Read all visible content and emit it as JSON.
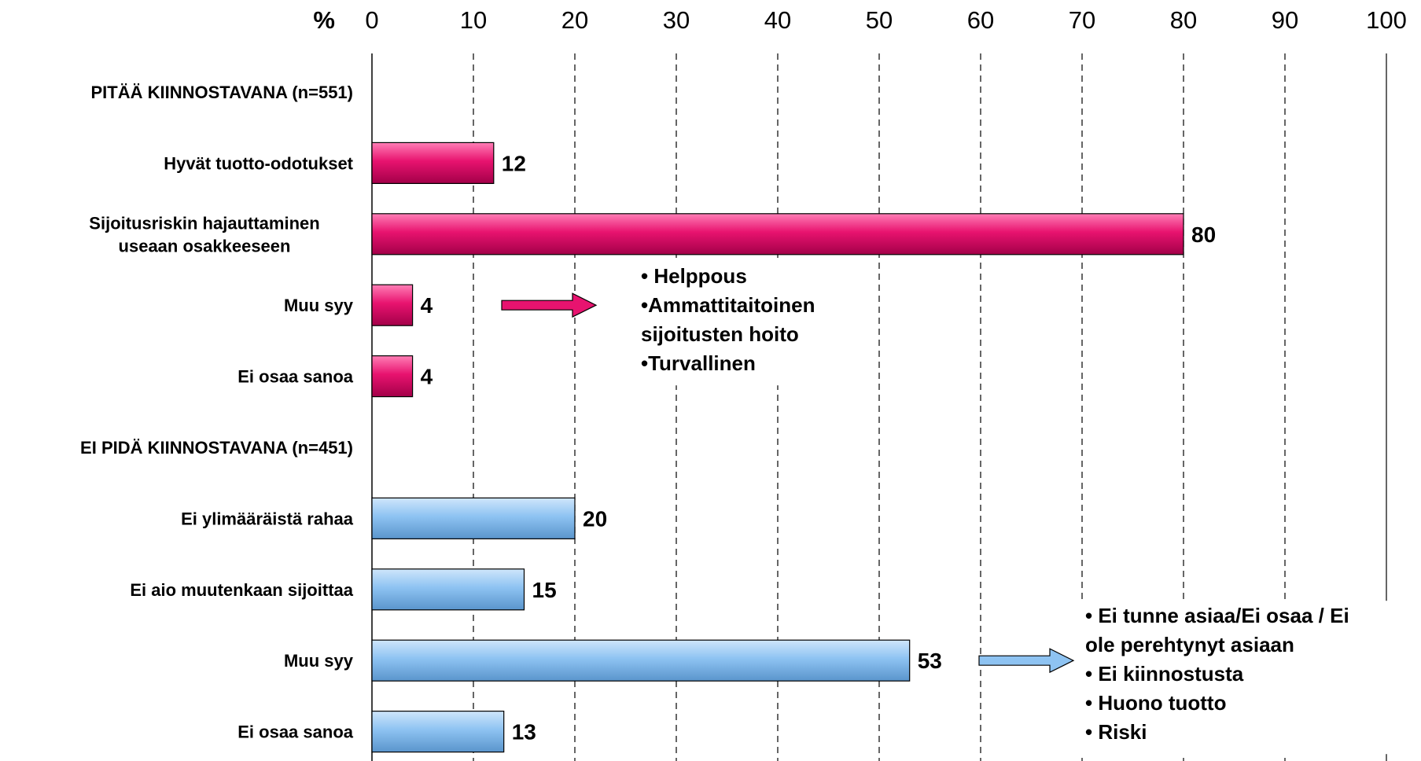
{
  "chart_data": {
    "type": "bar",
    "orientation": "horizontal",
    "unit_label": "%",
    "xlim": [
      0,
      100
    ],
    "x_ticks": [
      "0",
      "10",
      "20",
      "30",
      "40",
      "50",
      "60",
      "70",
      "80",
      "90",
      "100"
    ],
    "grid": true,
    "colors": {
      "group1": "#e8136f",
      "group2": "#8ec3f2"
    },
    "rows": [
      {
        "label": [
          "PITÄÄ KIINNOSTAVANA (n=551)"
        ],
        "header": true
      },
      {
        "label": [
          "Hyvät tuotto-odotukset"
        ],
        "value": 12,
        "value_label": "12",
        "group": "group1"
      },
      {
        "label": [
          "Sijoitusriskin hajauttaminen",
          "useaan osakkeeseen"
        ],
        "value": 80,
        "value_label": "80",
        "group": "group1"
      },
      {
        "label": [
          "Muu syy"
        ],
        "value": 4,
        "value_label": "4",
        "group": "group1"
      },
      {
        "label": [
          "Ei osaa sanoa"
        ],
        "value": 4,
        "value_label": "4",
        "group": "group1"
      },
      {
        "label": [
          "EI PIDÄ KIINNOSTAVANA (n=451)"
        ],
        "header": true
      },
      {
        "label": [
          "Ei ylimääräistä rahaa"
        ],
        "value": 20,
        "value_label": "20",
        "group": "group2"
      },
      {
        "label": [
          "Ei aio muutenkaan sijoittaa"
        ],
        "value": 15,
        "value_label": "15",
        "group": "group2"
      },
      {
        "label": [
          "Muu syy"
        ],
        "value": 53,
        "value_label": "53",
        "group": "group2"
      },
      {
        "label": [
          "Ei osaa sanoa"
        ],
        "value": 13,
        "value_label": "13",
        "group": "group2"
      }
    ],
    "annotations": [
      {
        "row": 3,
        "group": "group1",
        "lines": [
          "• Helppous",
          "•Ammattitaitoinen",
          "sijoitusten hoito",
          "•Turvallinen"
        ]
      },
      {
        "row": 8,
        "group": "group2",
        "lines": [
          "• Ei tunne asiaa/Ei osaa / Ei",
          "ole perehtynyt asiaan",
          "• Ei kiinnostusta",
          "• Huono tuotto",
          "• Riski"
        ]
      }
    ]
  }
}
